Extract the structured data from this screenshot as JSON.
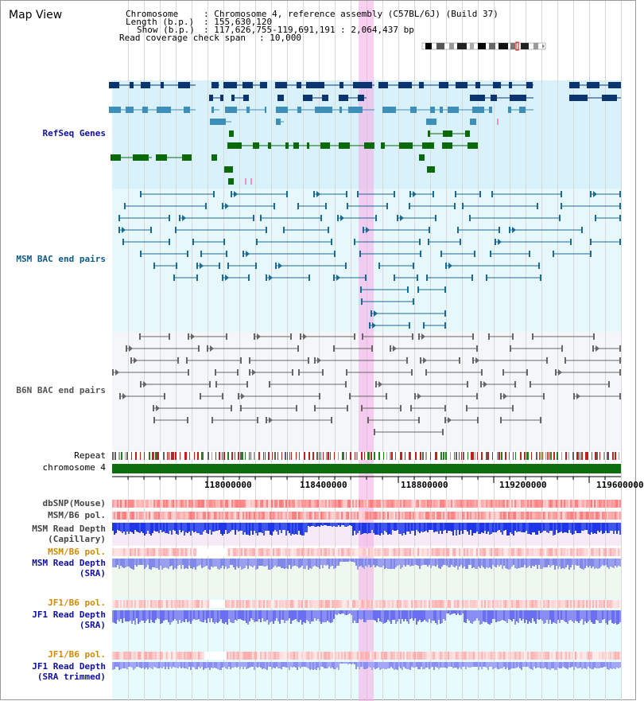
{
  "header": {
    "title": "Map View",
    "chromosome_label": "Chromosome",
    "chromosome_value": ": Chromosome 4, reference assembly (C57BL/6J) (Build 37)",
    "length_label": "Length (b.p.)",
    "length_value": ": 155,630,120",
    "show_label": "Show (b.p.)",
    "show_value": ": 117,626,755-119,691,191 : 2,064,437 bp",
    "coverage_label": "Read coverage check span",
    "coverage_value": ": 10,000"
  },
  "tracks": {
    "refseq": "RefSeq Genes",
    "msm_bac": "MSM BAC end pairs",
    "b6n_bac": "B6N BAC end pairs",
    "repeat": "Repeat",
    "chromosome": "chromosome 4",
    "dbsnp": "dbSNP(Mouse)",
    "msm_b6_pol_1": "MSM/B6 pol.",
    "msm_read_depth_cap_1": "MSM Read Depth",
    "msm_read_depth_cap_2": "(Capillary)",
    "msm_b6_pol_2": "MSM/B6 pol.",
    "msm_read_depth_sra_1": "MSM Read Depth",
    "msm_read_depth_sra_2": "(SRA)",
    "jf1_b6_pol_1": "JF1/B6 pol.",
    "jf1_read_depth_sra_1": "JF1 Read Depth",
    "jf1_read_depth_sra_2": "(SRA)",
    "jf1_b6_pol_2": "JF1/B6 pol.",
    "jf1_read_depth_trim_1": "JF1 Read Depth",
    "jf1_read_depth_trim_2": "(SRA trimmed)"
  },
  "axis": {
    "ticks": [
      "118000000",
      "118400000",
      "118800000",
      "119200000",
      "119600000"
    ]
  },
  "colors": {
    "refseq_bg": "#d9f1fb",
    "msm_bg": "#e6f8fc",
    "b6n_bg": "#f4f6fa",
    "refseq_dark": "#0b3570",
    "refseq_mid": "#3d8fb9",
    "refseq_green": "#0a6a0a",
    "msm_line": "#1a6a94",
    "b6n_line": "#666666",
    "label_blue": "#1010a0",
    "label_orange": "#d08a00",
    "highlight": "#f5aae6",
    "chrom_green": "#0c6e0c"
  }
}
